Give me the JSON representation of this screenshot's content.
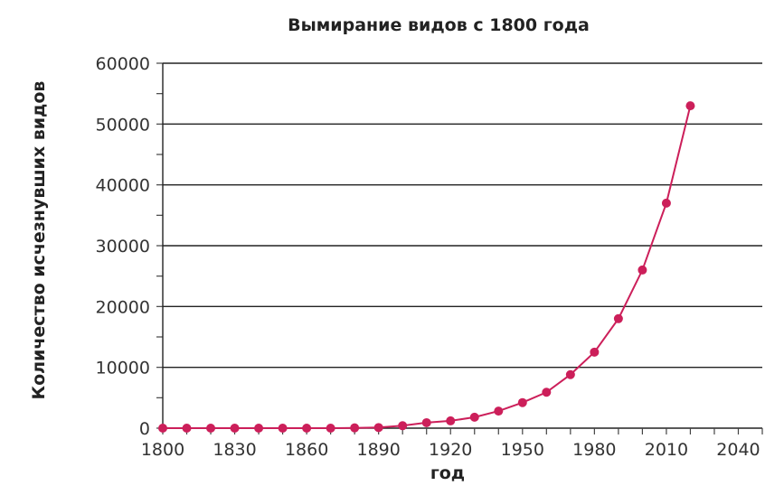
{
  "chart_data": {
    "type": "line",
    "title": "Вымирание видов с 1800 года",
    "xlabel": "год",
    "ylabel": "Количество исчезнувших видов",
    "xlim": [
      1800,
      2050
    ],
    "ylim": [
      0,
      60000
    ],
    "x_ticks": [
      1800,
      1830,
      1860,
      1890,
      1920,
      1950,
      1980,
      2010,
      2040
    ],
    "y_ticks": [
      0,
      10000,
      20000,
      30000,
      40000,
      50000,
      60000
    ],
    "grid": true,
    "legend": "none",
    "colors": {
      "series": "#cc1f5a",
      "grid": "#222222"
    },
    "series": [
      {
        "x": [
          1800,
          1810,
          1820,
          1830,
          1840,
          1850,
          1860,
          1870,
          1880,
          1890,
          1900,
          1910,
          1920,
          1930,
          1940,
          1950,
          1960,
          1970,
          1980,
          1990,
          2000,
          2010,
          2020
        ],
        "values": [
          0,
          0,
          0,
          0,
          0,
          0,
          0,
          0,
          50,
          100,
          400,
          900,
          1200,
          1800,
          2800,
          4200,
          5900,
          8800,
          12500,
          18000,
          26000,
          37000,
          53000
        ]
      }
    ]
  }
}
